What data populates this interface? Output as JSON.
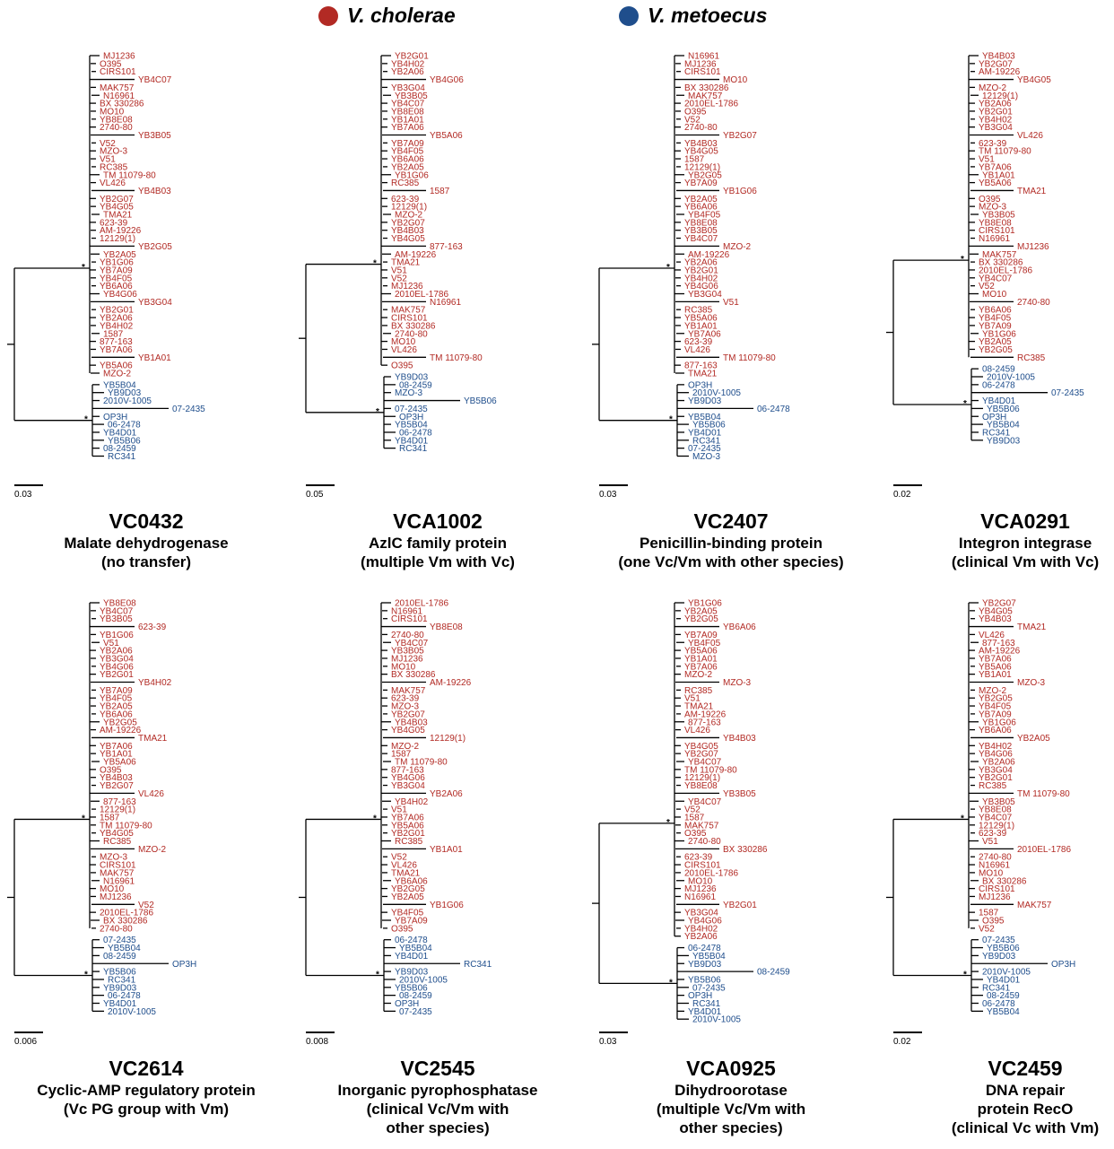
{
  "legend": [
    {
      "label": "V. cholerae",
      "color": "#b22a24"
    },
    {
      "label": "V. metoecus",
      "color": "#1f4e8c"
    }
  ],
  "colors": {
    "vc": "#b22a24",
    "vm": "#1f4e8c"
  },
  "panels": [
    {
      "gene": "VC0432",
      "desc": [
        "Malate dehydrogenase",
        "(no transfer)"
      ],
      "scale": "0.03",
      "red": [
        "MJ1236",
        "O395",
        "CIRS101",
        "YB4C07",
        "MAK757",
        "N16961",
        "BX 330286",
        "MO10",
        "YB8E08",
        "2740-80",
        "YB3B05",
        "V52",
        "MZO-3",
        "V51",
        "RC385",
        "TM 11079-80",
        "VL426",
        "YB4B03",
        "YB2G07",
        "YB4G05",
        "TMA21",
        "623-39",
        "AM-19226",
        "12129(1)",
        "YB2G05",
        "YB2A05",
        "YB1G06",
        "YB7A09",
        "YB4F05",
        "YB6A06",
        "YB4G06",
        "YB3G04",
        "YB2G01",
        "YB2A06",
        "YB4H02",
        "1587",
        "877-163",
        "YB7A06",
        "YB1A01",
        "YB5A06",
        "MZO-2"
      ],
      "blue": [
        "YB5B04",
        "YB9D03",
        "2010V-1005",
        "07-2435",
        "OP3H",
        "06-2478",
        "YB4D01",
        "YB5B06",
        "08-2459",
        "RC341"
      ]
    },
    {
      "gene": "VCA1002",
      "desc": [
        "AzlC family protein",
        "(multiple Vm with Vc)"
      ],
      "scale": "0.05",
      "red": [
        "YB2G01",
        "YB4H02",
        "YB2A06",
        "YB4G06",
        "YB3G04",
        "YB3B05",
        "YB4C07",
        "YB8E08",
        "YB1A01",
        "YB7A06",
        "YB5A06",
        "YB7A09",
        "YB4F05",
        "YB6A06",
        "YB2A05",
        "YB1G06",
        "RC385",
        "1587",
        "623-39",
        "12129(1)",
        "MZO-2",
        "YB2G07",
        "YB4B03",
        "YB4G05",
        "877-163",
        "AM-19226",
        "TMA21",
        "V51",
        "V52",
        "MJ1236",
        "2010EL-1786",
        "N16961",
        "MAK757",
        "CIRS101",
        "BX 330286",
        "2740-80",
        "MO10",
        "VL426",
        "TM 11079-80",
        "O395"
      ],
      "blue": [
        "YB9D03",
        "08-2459",
        "MZO-3",
        "YB5B06",
        "07-2435",
        "OP3H",
        "YB5B04",
        "06-2478",
        "YB4D01",
        "RC341"
      ]
    },
    {
      "gene": "VC2407",
      "desc": [
        "Penicillin-binding protein",
        "(one Vc/Vm with other species)"
      ],
      "scale": "0.03",
      "red": [
        "N16961",
        "MJ1236",
        "CIRS101",
        "MO10",
        "BX 330286",
        "MAK757",
        "2010EL-1786",
        "O395",
        "V52",
        "2740-80",
        "YB2G07",
        "YB4B03",
        "YB4G05",
        "1587",
        "12129(1)",
        "YB2G05",
        "YB7A09",
        "YB1G06",
        "YB2A05",
        "YB6A06",
        "YB4F05",
        "YB8E08",
        "YB3B05",
        "YB4C07",
        "MZO-2",
        "AM-19226",
        "YB2A06",
        "YB2G01",
        "YB4H02",
        "YB4G06",
        "YB3G04",
        "V51",
        "RC385",
        "YB5A06",
        "YB1A01",
        "YB7A06",
        "623-39",
        "VL426",
        "TM 11079-80",
        "877-163",
        "TMA21"
      ],
      "blue": [
        "OP3H",
        "2010V-1005",
        "YB9D03",
        "06-2478",
        "YB5B04",
        "YB5B06",
        "YB4D01",
        "RC341",
        "07-2435",
        "MZO-3"
      ]
    },
    {
      "gene": "VCA0291",
      "desc": [
        "Integron integrase",
        "(clinical Vm with Vc)"
      ],
      "scale": "0.02",
      "red": [
        "YB4B03",
        "YB2G07",
        "AM-19226",
        "YB4G05",
        "MZO-2",
        "12129(1)",
        "YB2A06",
        "YB2G01",
        "YB4H02",
        "YB3G04",
        "VL426",
        "623-39",
        "TM 11079-80",
        "V51",
        "YB7A06",
        "YB1A01",
        "YB5A06",
        "TMA21",
        "O395",
        "MZO-3",
        "YB3B05",
        "YB8E08",
        "CIRS101",
        "N16961",
        "MJ1236",
        "MAK757",
        "BX 330286",
        "2010EL-1786",
        "YB4C07",
        "V52",
        "MO10",
        "2740-80",
        "YB6A06",
        "YB4F05",
        "YB7A09",
        "YB1G06",
        "YB2A05",
        "YB2G05",
        "RC385"
      ],
      "blue": [
        "08-2459",
        "2010V-1005",
        "06-2478",
        "07-2435",
        "YB4D01",
        "YB5B06",
        "OP3H",
        "YB5B04",
        "RC341",
        "YB9D03"
      ]
    },
    {
      "gene": "VC2614",
      "desc": [
        "Cyclic-AMP regulatory protein",
        "(Vc PG group with Vm)"
      ],
      "scale": "0.006",
      "red": [
        "YB8E08",
        "YB4C07",
        "YB3B05",
        "623-39",
        "YB1G06",
        "V51",
        "YB2A06",
        "YB3G04",
        "YB4G06",
        "YB2G01",
        "YB4H02",
        "YB7A09",
        "YB4F05",
        "YB2A05",
        "YB6A06",
        "YB2G05",
        "AM-19226",
        "TMA21",
        "YB7A06",
        "YB1A01",
        "YB5A06",
        "O395",
        "YB4B03",
        "YB2G07",
        "VL426",
        "877-163",
        "12129(1)",
        "1587",
        "TM 11079-80",
        "YB4G05",
        "RC385",
        "MZO-2",
        "MZO-3",
        "CIRS101",
        "MAK757",
        "N16961",
        "MO10",
        "MJ1236",
        "V52",
        "2010EL-1786",
        "BX 330286",
        "2740-80"
      ],
      "blue": [
        "07-2435",
        "YB5B04",
        "08-2459",
        "OP3H",
        "YB5B06",
        "RC341",
        "YB9D03",
        "06-2478",
        "YB4D01",
        "2010V-1005"
      ]
    },
    {
      "gene": "VC2545",
      "desc": [
        "Inorganic pyrophosphatase",
        "(clinical Vc/Vm with",
        "other species)"
      ],
      "scale": "0.008",
      "red": [
        "2010EL-1786",
        "N16961",
        "CIRS101",
        "YB8E08",
        "2740-80",
        "YB4C07",
        "YB3B05",
        "MJ1236",
        "MO10",
        "BX 330286",
        "AM-19226",
        "MAK757",
        "623-39",
        "MZO-3",
        "YB2G07",
        "YB4B03",
        "YB4G05",
        "12129(1)",
        "MZO-2",
        "1587",
        "TM 11079-80",
        "877-163",
        "YB4G06",
        "YB3G04",
        "YB2A06",
        "YB4H02",
        "V51",
        "YB7A06",
        "YB5A06",
        "YB2G01",
        "RC385",
        "YB1A01",
        "V52",
        "VL426",
        "TMA21",
        "YB6A06",
        "YB2G05",
        "YB2A05",
        "YB1G06",
        "YB4F05",
        "YB7A09",
        "O395"
      ],
      "blue": [
        "06-2478",
        "YB5B04",
        "YB4D01",
        "RC341",
        "YB9D03",
        "2010V-1005",
        "YB5B06",
        "08-2459",
        "OP3H",
        "07-2435"
      ]
    },
    {
      "gene": "VCA0925",
      "desc": [
        "Dihydroorotase",
        "(multiple Vc/Vm with",
        "other species)"
      ],
      "scale": "0.03",
      "red": [
        "YB1G06",
        "YB2A05",
        "YB2G05",
        "YB6A06",
        "YB7A09",
        "YB4F05",
        "YB5A06",
        "YB1A01",
        "YB7A06",
        "MZO-2",
        "MZO-3",
        "RC385",
        "V51",
        "TMA21",
        "AM-19226",
        "877-163",
        "VL426",
        "YB4B03",
        "YB4G05",
        "YB2G07",
        "YB4C07",
        "TM 11079-80",
        "12129(1)",
        "YB8E08",
        "YB3B05",
        "YB4C07",
        "V52",
        "1587",
        "MAK757",
        "O395",
        "2740-80",
        "BX 330286",
        "623-39",
        "CIRS101",
        "2010EL-1786",
        "MO10",
        "MJ1236",
        "N16961",
        "YB2G01",
        "YB3G04",
        "YB4G06",
        "YB4H02",
        "YB2A06"
      ],
      "blue": [
        "06-2478",
        "YB5B04",
        "YB9D03",
        "08-2459",
        "YB5B06",
        "07-2435",
        "OP3H",
        "RC341",
        "YB4D01",
        "2010V-1005"
      ]
    },
    {
      "gene": "VC2459",
      "desc": [
        "DNA repair",
        "protein RecO",
        "(clinical Vc with Vm)"
      ],
      "scale": "0.02",
      "red": [
        "YB2G07",
        "YB4G05",
        "YB4B03",
        "TMA21",
        "VL426",
        "877-163",
        "AM-19226",
        "YB7A06",
        "YB5A06",
        "YB1A01",
        "MZO-3",
        "MZO-2",
        "YB2G05",
        "YB4F05",
        "YB7A09",
        "YB1G06",
        "YB6A06",
        "YB2A05",
        "YB4H02",
        "YB4G06",
        "YB2A06",
        "YB3G04",
        "YB2G01",
        "RC385",
        "TM 11079-80",
        "YB3B05",
        "YB8E08",
        "YB4C07",
        "12129(1)",
        "623-39",
        "V51",
        "2010EL-1786",
        "2740-80",
        "N16961",
        "MO10",
        "BX 330286",
        "CIRS101",
        "MJ1236",
        "MAK757",
        "1587",
        "O395",
        "V52"
      ],
      "blue": [
        "07-2435",
        "YB5B06",
        "YB9D03",
        "OP3H",
        "2010V-1005",
        "YB4D01",
        "RC341",
        "08-2459",
        "06-2478",
        "YB5B04"
      ]
    }
  ]
}
